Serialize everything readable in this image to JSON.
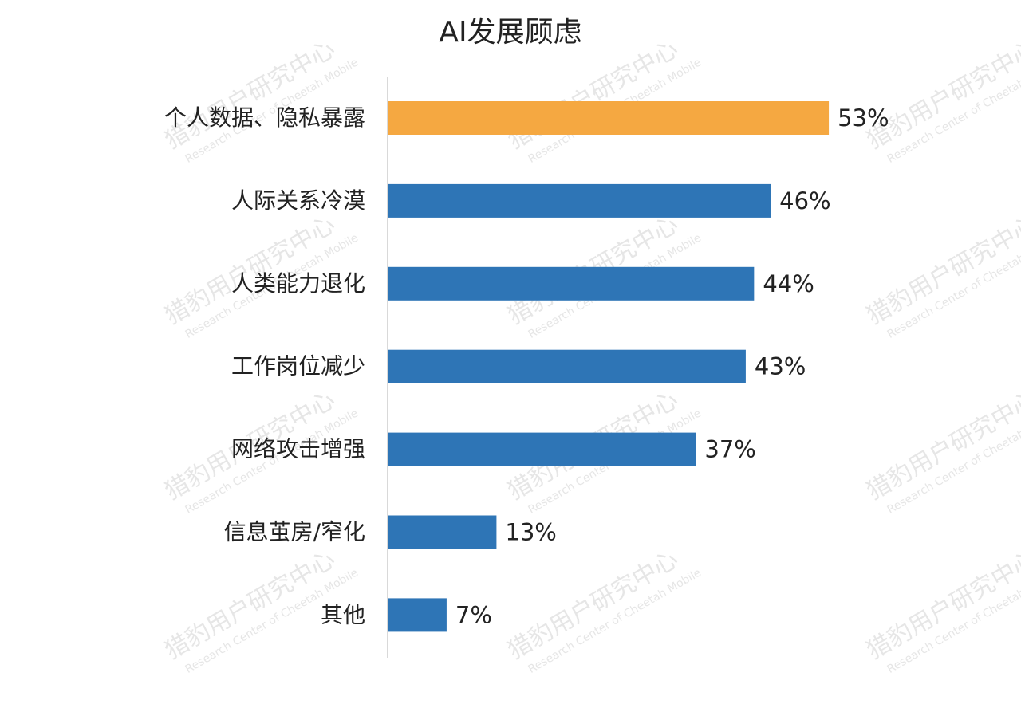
{
  "chart_data": {
    "type": "bar",
    "orientation": "horizontal",
    "title": "AI发展顾虑",
    "categories": [
      "个人数据、隐私暴露",
      "人际关系冷漠",
      "人类能力退化",
      "工作岗位减少",
      "网络攻击增强",
      "信息茧房/窄化",
      "其他"
    ],
    "values": [
      53,
      46,
      44,
      43,
      37,
      13,
      7
    ],
    "value_labels": [
      "53%",
      "46%",
      "44%",
      "43%",
      "37%",
      "13%",
      "7%"
    ],
    "colors": [
      "#f5a841",
      "#2e75b6",
      "#2e75b6",
      "#2e75b6",
      "#2e75b6",
      "#2e75b6",
      "#2e75b6"
    ],
    "xlim": [
      0,
      60
    ],
    "watermark": [
      "猎豹用户研究中心",
      "Research Center of Cheetah Mobile"
    ]
  }
}
